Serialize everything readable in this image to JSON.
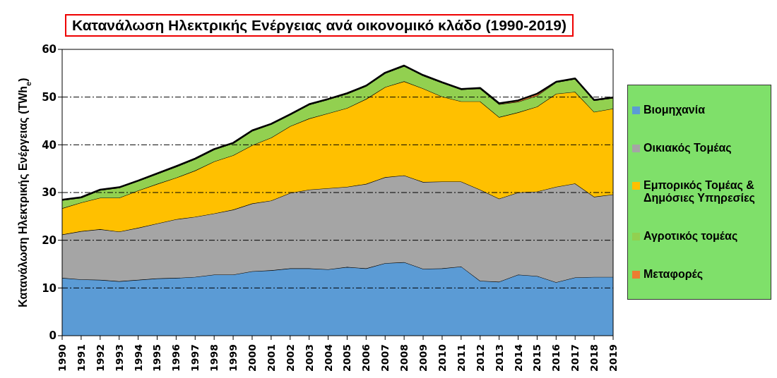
{
  "chart_data": {
    "type": "area",
    "stacked": true,
    "title": "Κατανάλωση Ηλεκτρικής Ενέργειας ανά οικονομικό κλάδο (1990-2019)",
    "ylabel": "Κατανάλωση Ηλεκτρικής Ενέργειας (TWh$_{e}$)",
    "categories": [
      "1990",
      "1991",
      "1992",
      "1993",
      "1994",
      "1995",
      "1996",
      "1997",
      "1998",
      "1999",
      "2000",
      "2001",
      "2002",
      "2003",
      "2004",
      "2005",
      "2006",
      "2007",
      "2008",
      "2009",
      "2010",
      "2011",
      "2012",
      "2013",
      "2014",
      "2015",
      "2016",
      "2017",
      "2018",
      "2019"
    ],
    "series": [
      {
        "name": "Βιομηχανία",
        "color": "#5b9bd5",
        "values": [
          12.1,
          11.8,
          11.7,
          11.4,
          11.7,
          12.0,
          12.1,
          12.3,
          12.8,
          12.8,
          13.5,
          13.7,
          14.1,
          14.1,
          13.9,
          14.4,
          14.1,
          15.2,
          15.4,
          14.0,
          14.1,
          14.5,
          11.5,
          11.3,
          12.8,
          12.5,
          11.2,
          12.2,
          12.3,
          12.3
        ]
      },
      {
        "name": "Οικιακός Τομέας",
        "color": "#a5a5a5",
        "values": [
          9.1,
          10.1,
          10.6,
          10.4,
          10.9,
          11.5,
          12.3,
          12.6,
          12.8,
          13.6,
          14.2,
          14.6,
          15.8,
          16.5,
          17.0,
          16.8,
          17.7,
          18.0,
          18.2,
          18.2,
          18.2,
          17.8,
          19.1,
          17.4,
          17.2,
          17.7,
          20.0,
          19.7,
          16.8,
          17.3
        ]
      },
      {
        "name": "Εμπορικός Τομέας & Δημόσιες Υπηρεσίες",
        "color": "#ffc000",
        "values": [
          5.5,
          6.0,
          6.6,
          7.1,
          7.8,
          8.3,
          8.7,
          9.7,
          10.9,
          11.4,
          12.2,
          13.2,
          14.0,
          14.9,
          15.7,
          16.5,
          17.8,
          18.9,
          19.7,
          19.6,
          17.8,
          16.8,
          18.5,
          17.1,
          16.8,
          17.8,
          19.5,
          19.2,
          17.8,
          18.0
        ]
      },
      {
        "name": "Αγροτικός τομέας",
        "color": "#92d050",
        "values": [
          1.7,
          1.0,
          1.6,
          2.1,
          2.0,
          2.1,
          2.3,
          2.4,
          2.5,
          2.5,
          3.0,
          2.8,
          2.4,
          2.9,
          2.9,
          3.0,
          2.7,
          2.9,
          3.2,
          2.7,
          2.9,
          2.5,
          2.7,
          2.7,
          2.2,
          2.3,
          2.4,
          2.7,
          2.4,
          2.2
        ]
      },
      {
        "name": "Μεταφορές",
        "color": "#ed7d31",
        "values": [
          0.1,
          0.1,
          0.1,
          0.1,
          0.1,
          0.1,
          0.1,
          0.1,
          0.1,
          0.1,
          0.1,
          0.1,
          0.1,
          0.1,
          0.1,
          0.1,
          0.1,
          0.1,
          0.1,
          0.1,
          0.1,
          0.1,
          0.1,
          0.2,
          0.3,
          0.4,
          0.1,
          0.1,
          0.1,
          0.1
        ]
      }
    ],
    "ylim": [
      0,
      60
    ],
    "yticks": [
      0,
      10,
      20,
      30,
      40,
      50,
      60
    ],
    "grid": "y",
    "legend": "right"
  }
}
